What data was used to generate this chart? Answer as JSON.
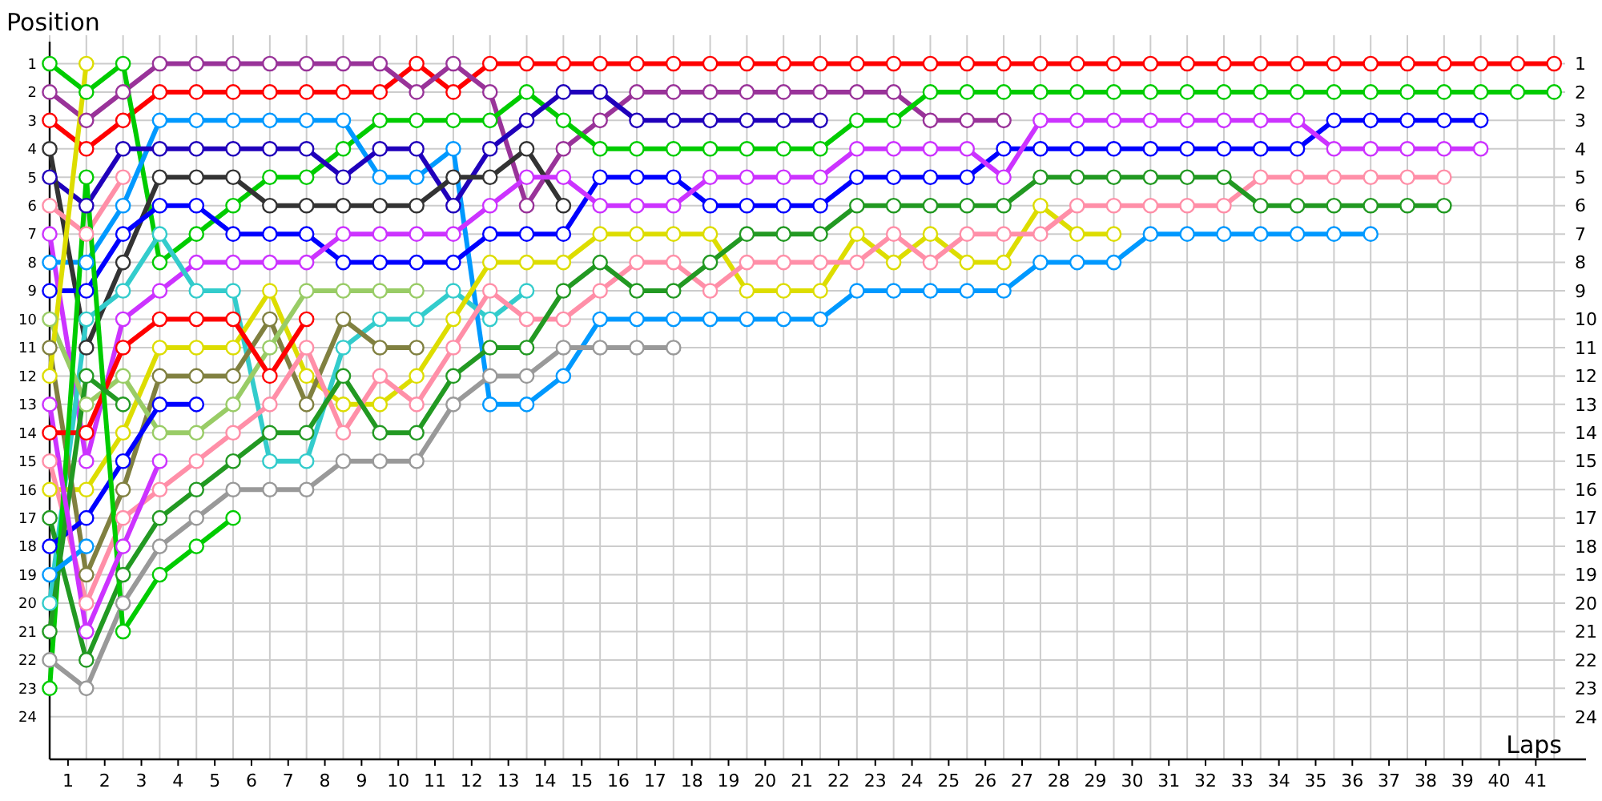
{
  "chart_data": {
    "type": "line",
    "xlabel": "Laps",
    "ylabel": "Position",
    "grid": true,
    "marker": "circle",
    "line_style": "solid",
    "x": [
      0,
      1,
      2,
      3,
      4,
      5,
      6,
      7,
      8,
      9,
      10,
      11,
      12,
      13,
      14,
      15,
      16,
      17,
      18,
      19,
      20,
      21,
      22,
      23,
      24,
      25,
      26,
      27,
      28,
      29,
      30,
      31,
      32,
      33,
      34,
      35,
      36,
      37,
      38,
      39,
      40,
      41
    ],
    "xlim": [
      0,
      41.3
    ],
    "xticks": [
      {
        "value": 0.5,
        "label": "1"
      },
      {
        "value": 1.5,
        "label": "2"
      },
      {
        "value": 2.5,
        "label": "3"
      },
      {
        "value": 3.5,
        "label": "4"
      },
      {
        "value": 4.5,
        "label": "5"
      },
      {
        "value": 5.5,
        "label": "6"
      },
      {
        "value": 6.5,
        "label": "7"
      },
      {
        "value": 7.5,
        "label": "8"
      },
      {
        "value": 8.5,
        "label": "9"
      },
      {
        "value": 9.5,
        "label": "10"
      },
      {
        "value": 10.5,
        "label": "11"
      },
      {
        "value": 11.5,
        "label": "12"
      },
      {
        "value": 12.5,
        "label": "13"
      },
      {
        "value": 13.5,
        "label": "14"
      },
      {
        "value": 14.5,
        "label": "15"
      },
      {
        "value": 15.5,
        "label": "16"
      },
      {
        "value": 16.5,
        "label": "17"
      },
      {
        "value": 17.5,
        "label": "18"
      },
      {
        "value": 18.5,
        "label": "19"
      },
      {
        "value": 19.5,
        "label": "20"
      },
      {
        "value": 20.5,
        "label": "21"
      },
      {
        "value": 21.5,
        "label": "22"
      },
      {
        "value": 22.5,
        "label": "23"
      },
      {
        "value": 23.5,
        "label": "24"
      },
      {
        "value": 24.5,
        "label": "25"
      },
      {
        "value": 25.5,
        "label": "26"
      },
      {
        "value": 26.5,
        "label": "27"
      },
      {
        "value": 27.5,
        "label": "28"
      },
      {
        "value": 28.5,
        "label": "29"
      },
      {
        "value": 29.5,
        "label": "30"
      },
      {
        "value": 30.5,
        "label": "31"
      },
      {
        "value": 31.5,
        "label": "32"
      },
      {
        "value": 32.5,
        "label": "33"
      },
      {
        "value": 33.5,
        "label": "34"
      },
      {
        "value": 34.5,
        "label": "35"
      },
      {
        "value": 35.5,
        "label": "36"
      },
      {
        "value": 36.5,
        "label": "37"
      },
      {
        "value": 37.5,
        "label": "38"
      },
      {
        "value": 38.5,
        "label": "39"
      },
      {
        "value": 39.5,
        "label": "40"
      },
      {
        "value": 40.5,
        "label": "41"
      }
    ],
    "ylim": [
      25.5,
      0
    ],
    "yticks": [
      1,
      2,
      3,
      4,
      5,
      6,
      7,
      8,
      9,
      10,
      11,
      12,
      13,
      14,
      15,
      16,
      17,
      18,
      19,
      20,
      21,
      22,
      23,
      24
    ],
    "y2lim": [
      25.5,
      0
    ],
    "y2ticks": [
      1,
      2,
      3,
      4,
      5,
      6,
      7,
      8,
      9,
      10,
      11,
      12,
      13,
      14,
      15,
      16,
      17,
      18,
      19,
      20,
      21,
      22,
      23,
      24
    ],
    "series": [
      {
        "color": "#ff0000",
        "values": [
          3,
          4,
          3,
          2,
          2,
          2,
          2,
          2,
          2,
          2,
          1,
          2,
          1,
          1,
          1,
          1,
          1,
          1,
          1,
          1,
          1,
          1,
          1,
          1,
          1,
          1,
          1,
          1,
          1,
          1,
          1,
          1,
          1,
          1,
          1,
          1,
          1,
          1,
          1,
          1,
          1,
          1
        ]
      },
      {
        "color": "#993399",
        "values": [
          2,
          3,
          2,
          1,
          1,
          1,
          1,
          1,
          1,
          1,
          2,
          1,
          2,
          6,
          4,
          3,
          2,
          2,
          2,
          2,
          2,
          2,
          2,
          2,
          3,
          3,
          3,
          null,
          null,
          null,
          null,
          null,
          null,
          null,
          null,
          null,
          null,
          null,
          null,
          null,
          null,
          null
        ]
      },
      {
        "color": "#00cc00",
        "values": [
          1,
          2,
          1,
          8,
          7,
          6,
          5,
          5,
          4,
          3,
          3,
          3,
          3,
          2,
          3,
          4,
          4,
          4,
          4,
          4,
          4,
          4,
          3,
          3,
          2,
          2,
          2,
          2,
          2,
          2,
          2,
          2,
          2,
          2,
          2,
          2,
          2,
          2,
          2,
          2,
          2,
          2
        ]
      },
      {
        "color": "#0099ff",
        "values": [
          8,
          8,
          6,
          3,
          3,
          3,
          3,
          3,
          3,
          5,
          5,
          4,
          13,
          13,
          12,
          10,
          10,
          10,
          10,
          10,
          10,
          10,
          9,
          9,
          9,
          9,
          9,
          8,
          8,
          8,
          7,
          7,
          7,
          7,
          7,
          7,
          7,
          null,
          null,
          null,
          null,
          null
        ]
      },
      {
        "color": "#2000bb",
        "values": [
          5,
          6,
          4,
          4,
          4,
          4,
          4,
          4,
          5,
          4,
          4,
          6,
          4,
          3,
          2,
          2,
          3,
          3,
          3,
          3,
          3,
          3,
          null,
          null,
          null,
          null,
          null,
          null,
          null,
          null,
          null,
          null,
          null,
          null,
          null,
          null,
          null,
          null,
          null,
          null,
          null,
          null
        ]
      },
      {
        "color": "#333333",
        "values": [
          4,
          11,
          8,
          5,
          5,
          5,
          6,
          6,
          6,
          6,
          6,
          5,
          5,
          4,
          6,
          null,
          null,
          null,
          null,
          null,
          null,
          null,
          null,
          null,
          null,
          null,
          null,
          null,
          null,
          null,
          null,
          null,
          null,
          null,
          null,
          null,
          null,
          null,
          null,
          null,
          null,
          null
        ]
      },
      {
        "color": "#0000ff",
        "values": [
          9,
          9,
          7,
          6,
          6,
          7,
          7,
          7,
          8,
          8,
          8,
          8,
          7,
          7,
          7,
          5,
          5,
          5,
          6,
          6,
          6,
          6,
          5,
          5,
          5,
          5,
          4,
          4,
          4,
          4,
          4,
          4,
          4,
          4,
          4,
          3,
          3,
          3,
          3,
          3,
          null,
          null
        ]
      },
      {
        "color": "#cc33ff",
        "values": [
          7,
          15,
          10,
          9,
          8,
          8,
          8,
          8,
          7,
          7,
          7,
          7,
          6,
          5,
          5,
          6,
          6,
          6,
          5,
          5,
          5,
          5,
          4,
          4,
          4,
          4,
          5,
          3,
          3,
          3,
          3,
          3,
          3,
          3,
          3,
          4,
          4,
          4,
          4,
          4,
          null,
          null
        ]
      },
      {
        "color": "#33cccc",
        "values": [
          20,
          10,
          9,
          7,
          9,
          9,
          15,
          15,
          11,
          10,
          10,
          9,
          10,
          9,
          null,
          null,
          null,
          null,
          null,
          null,
          null,
          null,
          null,
          null,
          null,
          null,
          null,
          null,
          null,
          null,
          null,
          null,
          null,
          null,
          null,
          null,
          null,
          null,
          null,
          null,
          null,
          null
        ]
      },
      {
        "color": "#dddd00",
        "values": [
          16,
          16,
          14,
          11,
          11,
          11,
          9,
          12,
          13,
          13,
          12,
          10,
          8,
          8,
          8,
          7,
          7,
          7,
          7,
          9,
          9,
          9,
          7,
          8,
          7,
          8,
          8,
          6,
          7,
          7,
          null,
          null,
          null,
          null,
          null,
          null,
          null,
          null,
          null,
          null,
          null,
          null
        ]
      },
      {
        "color": "#808040",
        "values": [
          11,
          19,
          16,
          12,
          12,
          12,
          10,
          13,
          10,
          11,
          11,
          null,
          null,
          null,
          null,
          null,
          null,
          null,
          null,
          null,
          null,
          null,
          null,
          null,
          null,
          null,
          null,
          null,
          null,
          null,
          null,
          null,
          null,
          null,
          null,
          null,
          null,
          null,
          null,
          null,
          null,
          null
        ]
      },
      {
        "color": "#99cc66",
        "values": [
          10,
          13,
          12,
          14,
          14,
          13,
          11,
          9,
          9,
          9,
          9,
          null,
          null,
          null,
          null,
          null,
          null,
          null,
          null,
          null,
          null,
          null,
          null,
          null,
          null,
          null,
          null,
          null,
          null,
          null,
          null,
          null,
          null,
          null,
          null,
          null,
          null,
          null,
          null,
          null,
          null,
          null
        ]
      },
      {
        "color": "#ff8fa8",
        "values": [
          15,
          20,
          17,
          16,
          15,
          14,
          13,
          11,
          14,
          12,
          13,
          11,
          9,
          10,
          10,
          9,
          8,
          8,
          9,
          8,
          8,
          8,
          8,
          7,
          8,
          7,
          7,
          7,
          6,
          6,
          6,
          6,
          6,
          5,
          5,
          5,
          5,
          5,
          5,
          null,
          null,
          null
        ]
      },
      {
        "color": "#229922",
        "values": [
          17,
          22,
          19,
          17,
          16,
          15,
          14,
          14,
          12,
          14,
          14,
          12,
          11,
          11,
          9,
          8,
          9,
          9,
          8,
          7,
          7,
          7,
          6,
          6,
          6,
          6,
          6,
          5,
          5,
          5,
          5,
          5,
          5,
          6,
          6,
          6,
          6,
          6,
          6,
          null,
          null,
          null
        ]
      },
      {
        "color": "#999999",
        "values": [
          22,
          23,
          20,
          18,
          17,
          16,
          16,
          16,
          15,
          15,
          15,
          13,
          12,
          12,
          11,
          11,
          11,
          11,
          null,
          null,
          null,
          null,
          null,
          null,
          null,
          null,
          null,
          null,
          null,
          null,
          null,
          null,
          null,
          null,
          null,
          null,
          null,
          null,
          null,
          null,
          null,
          null
        ]
      },
      {
        "color": "#ff0000",
        "values": [
          14,
          14,
          11,
          10,
          10,
          10,
          12,
          10,
          null,
          null,
          null,
          null,
          null,
          null,
          null,
          null,
          null,
          null,
          null,
          null,
          null,
          null,
          null,
          null,
          null,
          null,
          null,
          null,
          null,
          null,
          null,
          null,
          null,
          null,
          null,
          null,
          null,
          null,
          null,
          null,
          null,
          null
        ]
      },
      {
        "color": "#0000ff",
        "values": [
          18,
          17,
          15,
          13,
          13,
          null,
          null,
          null,
          null,
          null,
          null,
          null,
          null,
          null,
          null,
          null,
          null,
          null,
          null,
          null,
          null,
          null,
          null,
          null,
          null,
          null,
          null,
          null,
          null,
          null,
          null,
          null,
          null,
          null,
          null,
          null,
          null,
          null,
          null,
          null,
          null,
          null
        ]
      },
      {
        "color": "#ff8fa8",
        "values": [
          6,
          7,
          5,
          null,
          null,
          null,
          null,
          null,
          null,
          null,
          null,
          null,
          null,
          null,
          null,
          null,
          null,
          null,
          null,
          null,
          null,
          null,
          null,
          null,
          null,
          null,
          null,
          null,
          null,
          null,
          null,
          null,
          null,
          null,
          null,
          null,
          null,
          null,
          null,
          null,
          null,
          null
        ]
      },
      {
        "color": "#dddd00",
        "values": [
          12,
          1,
          null,
          null,
          null,
          null,
          null,
          null,
          null,
          null,
          null,
          null,
          null,
          null,
          null,
          null,
          null,
          null,
          null,
          null,
          null,
          null,
          null,
          null,
          null,
          null,
          null,
          null,
          null,
          null,
          null,
          null,
          null,
          null,
          null,
          null,
          null,
          null,
          null,
          null,
          null,
          null
        ]
      },
      {
        "color": "#00cc00",
        "values": [
          23,
          5,
          21,
          19,
          18,
          17,
          null,
          null,
          null,
          null,
          null,
          null,
          null,
          null,
          null,
          null,
          null,
          null,
          null,
          null,
          null,
          null,
          null,
          null,
          null,
          null,
          null,
          null,
          null,
          null,
          null,
          null,
          null,
          null,
          null,
          null,
          null,
          null,
          null,
          null,
          null,
          null
        ]
      },
      {
        "color": "#229922",
        "values": [
          21,
          12,
          13,
          null,
          null,
          null,
          null,
          null,
          null,
          null,
          null,
          null,
          null,
          null,
          null,
          null,
          null,
          null,
          null,
          null,
          null,
          null,
          null,
          null,
          null,
          null,
          null,
          null,
          null,
          null,
          null,
          null,
          null,
          null,
          null,
          null,
          null,
          null,
          null,
          null,
          null,
          null
        ]
      },
      {
        "color": "#0099ff",
        "values": [
          19,
          18,
          null,
          null,
          null,
          null,
          null,
          null,
          null,
          null,
          null,
          null,
          null,
          null,
          null,
          null,
          null,
          null,
          null,
          null,
          null,
          null,
          null,
          null,
          null,
          null,
          null,
          null,
          null,
          null,
          null,
          null,
          null,
          null,
          null,
          null,
          null,
          null,
          null,
          null,
          null,
          null
        ]
      },
      {
        "color": "#cc33ff",
        "values": [
          13,
          21,
          18,
          15,
          null,
          null,
          null,
          null,
          null,
          null,
          null,
          null,
          null,
          null,
          null,
          null,
          null,
          null,
          null,
          null,
          null,
          null,
          null,
          null,
          null,
          null,
          null,
          null,
          null,
          null,
          null,
          null,
          null,
          null,
          null,
          null,
          null,
          null,
          null,
          null,
          null,
          null
        ]
      }
    ]
  }
}
